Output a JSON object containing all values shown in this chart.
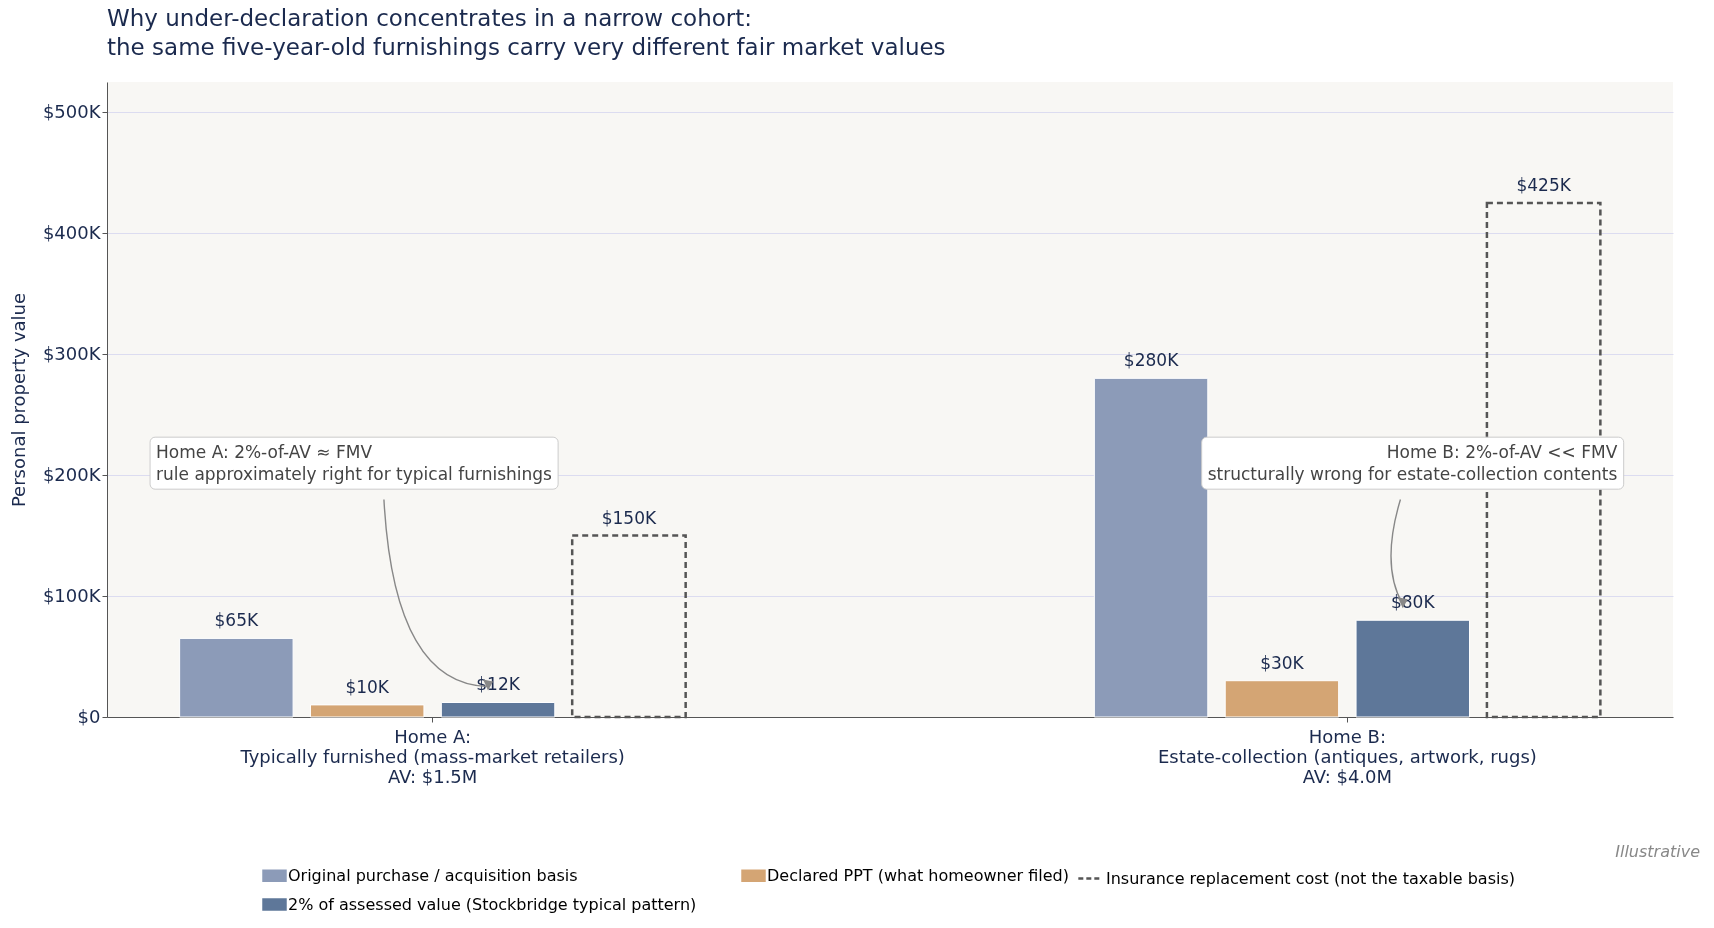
{
  "chart_data": {
    "type": "bar",
    "title": "Why under-declaration concentrates in a narrow cohort:\nthe same five-year-old furnishings carry very different fair market values",
    "ylabel": "Personal property value",
    "categories": [
      "Home A:\nTypically furnished (mass-market retailers)\nAV: $1.5M",
      "Home B:\nEstate-collection (antiques, artwork, rugs)\nAV: $4.0M"
    ],
    "series": [
      {
        "name": "Original purchase / acquisition basis",
        "color": "#8c9bb8",
        "values": [
          65000,
          280000
        ],
        "value_labels": [
          "$65K",
          "$280K"
        ]
      },
      {
        "name": "Declared PPT (what homeowner filed)",
        "color": "#d4a574",
        "values": [
          10000,
          30000
        ],
        "value_labels": [
          "$10K",
          "$30K"
        ]
      },
      {
        "name": "2% of assessed value (Stockbridge typical pattern)",
        "color": "#5e7799",
        "values": [
          12000,
          80000
        ],
        "value_labels": [
          "$12K",
          "$80K"
        ]
      },
      {
        "name": "Insurance replacement cost (not the taxable basis)",
        "color": "#555555",
        "line_style": "dashed",
        "values": [
          150000,
          425000
        ],
        "value_labels": [
          "$150K",
          "$425K"
        ]
      }
    ],
    "ylim": [
      0,
      525000
    ],
    "yticks": [
      {
        "value": 0,
        "label": "$0"
      },
      {
        "value": 100000,
        "label": "$100K"
      },
      {
        "value": 200000,
        "label": "$200K"
      },
      {
        "value": 300000,
        "label": "$300K"
      },
      {
        "value": 400000,
        "label": "$400K"
      },
      {
        "value": 500000,
        "label": "$500K"
      }
    ],
    "grid": "y",
    "legend": "bottom",
    "annotations": [
      "Home A: 2%-of-AV ≈ FMV\nrule approximately right for typical furnishings",
      "Home B: 2%-of-AV << FMV\nstructurally wrong for estate-collection contents",
      "Illustrative"
    ]
  }
}
